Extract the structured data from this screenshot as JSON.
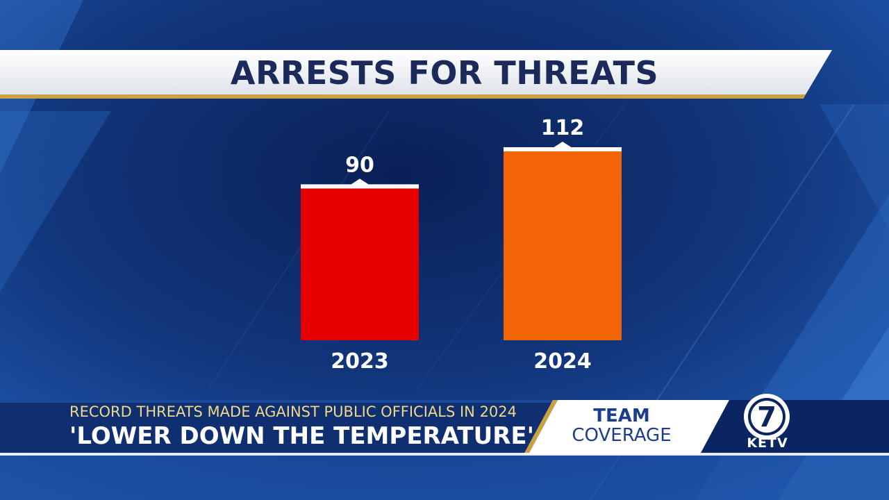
{
  "graphic": {
    "title": "ARRESTS FOR THREATS"
  },
  "chart_data": {
    "type": "bar",
    "title": "ARRESTS FOR THREATS",
    "categories": [
      "2023",
      "2024"
    ],
    "values": [
      90,
      112
    ],
    "xlabel": "",
    "ylabel": "",
    "colors": [
      "#e60000",
      "#f26406"
    ],
    "grid": false,
    "legend": "none"
  },
  "lower_third": {
    "subhead": "RECORD THREATS MADE AGAINST PUBLIC OFFICIALS IN 2024",
    "headline": "'LOWER DOWN THE TEMPERATURE'",
    "tag_line1": "TEAM",
    "tag_line2": "COVERAGE"
  },
  "station": {
    "logo_number": "7",
    "call_letters": "KETV"
  },
  "colors": {
    "background": "#0d2a66",
    "accent_gold": "#c9a243",
    "title_text": "#1b2a5a"
  }
}
